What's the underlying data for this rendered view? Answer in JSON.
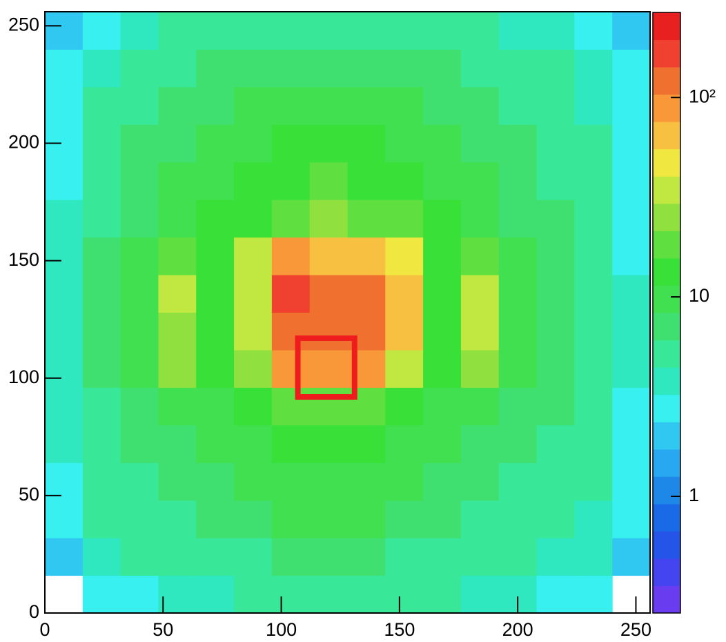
{
  "chart_data": {
    "type": "heatmap",
    "xbins": [
      0,
      16,
      32,
      48,
      64,
      80,
      96,
      112,
      128,
      144,
      160,
      176,
      192,
      208,
      224,
      240,
      256
    ],
    "ybins": [
      0,
      16,
      32,
      48,
      64,
      80,
      96,
      112,
      128,
      144,
      160,
      176,
      192,
      208,
      224,
      240,
      256
    ],
    "z": [
      [
        null,
        3,
        3,
        4,
        4,
        5,
        5,
        5,
        5,
        5,
        5,
        4,
        4,
        3,
        3,
        null
      ],
      [
        2,
        4,
        5,
        5,
        6,
        6,
        7,
        7,
        7,
        6,
        6,
        5,
        5,
        4,
        4,
        2
      ],
      [
        3,
        5,
        6,
        6,
        7,
        8,
        9,
        9,
        9,
        8,
        7,
        6,
        6,
        5,
        4,
        3
      ],
      [
        3,
        5,
        6,
        7,
        8,
        9,
        10,
        11,
        10,
        9,
        8,
        7,
        6,
        5,
        5,
        3
      ],
      [
        4,
        5,
        7,
        8,
        9,
        11,
        13,
        14,
        13,
        11,
        9,
        8,
        7,
        6,
        5,
        3
      ],
      [
        4,
        6,
        8,
        9,
        11,
        14,
        18,
        20,
        18,
        14,
        11,
        9,
        8,
        7,
        5,
        3
      ],
      [
        4,
        7,
        9,
        22,
        12,
        22,
        90,
        80,
        85,
        40,
        14,
        22,
        10,
        7,
        6,
        4
      ],
      [
        4,
        7,
        10,
        28,
        13,
        35,
        130,
        110,
        110,
        60,
        15,
        30,
        11,
        8,
        6,
        4
      ],
      [
        4,
        7,
        10,
        30,
        13,
        40,
        150,
        130,
        120,
        65,
        15,
        30,
        11,
        8,
        6,
        4
      ],
      [
        4,
        7,
        9,
        18,
        12,
        30,
        80,
        70,
        70,
        45,
        14,
        18,
        10,
        7,
        6,
        3
      ],
      [
        4,
        6,
        8,
        10,
        12,
        15,
        20,
        22,
        20,
        16,
        12,
        10,
        8,
        7,
        5,
        3
      ],
      [
        3,
        6,
        7,
        9,
        10,
        12,
        15,
        16,
        15,
        12,
        10,
        9,
        7,
        6,
        5,
        3
      ],
      [
        3,
        5,
        7,
        8,
        9,
        10,
        12,
        13,
        12,
        10,
        9,
        8,
        7,
        6,
        5,
        3
      ],
      [
        3,
        5,
        6,
        7,
        8,
        9,
        10,
        10,
        10,
        9,
        8,
        7,
        6,
        5,
        4,
        3
      ],
      [
        3,
        4,
        5,
        6,
        7,
        8,
        8,
        8,
        8,
        8,
        7,
        6,
        5,
        5,
        4,
        3
      ],
      [
        2,
        3,
        4,
        5,
        5,
        6,
        6,
        6,
        6,
        6,
        5,
        5,
        4,
        4,
        3,
        2
      ]
    ],
    "xlim": [
      0,
      256
    ],
    "ylim": [
      0,
      256
    ],
    "xticks": [
      0,
      50,
      100,
      150,
      200,
      250
    ],
    "yticks": [
      0,
      50,
      100,
      150,
      200,
      250
    ],
    "zlim": [
      0.26,
      267
    ],
    "zscale": "log",
    "zticks": [
      1,
      10,
      {
        "value": 100,
        "label": "10²"
      }
    ],
    "palette": [
      "#6a3cf0",
      "#4444f0",
      "#2454e8",
      "#1a6ae8",
      "#1e88e8",
      "#28a8f0",
      "#30c8f0",
      "#38f0f0",
      "#30e8c0",
      "#38e898",
      "#40e070",
      "#40e050",
      "#38e038",
      "#60e040",
      "#90e040",
      "#c0e840",
      "#f0e840",
      "#f8c040",
      "#f89838",
      "#f07030",
      "#f04030",
      "#e82020"
    ],
    "box": {
      "x": [
        107,
        131
      ],
      "y": [
        92,
        117
      ],
      "color": "#ee1c1c"
    }
  }
}
